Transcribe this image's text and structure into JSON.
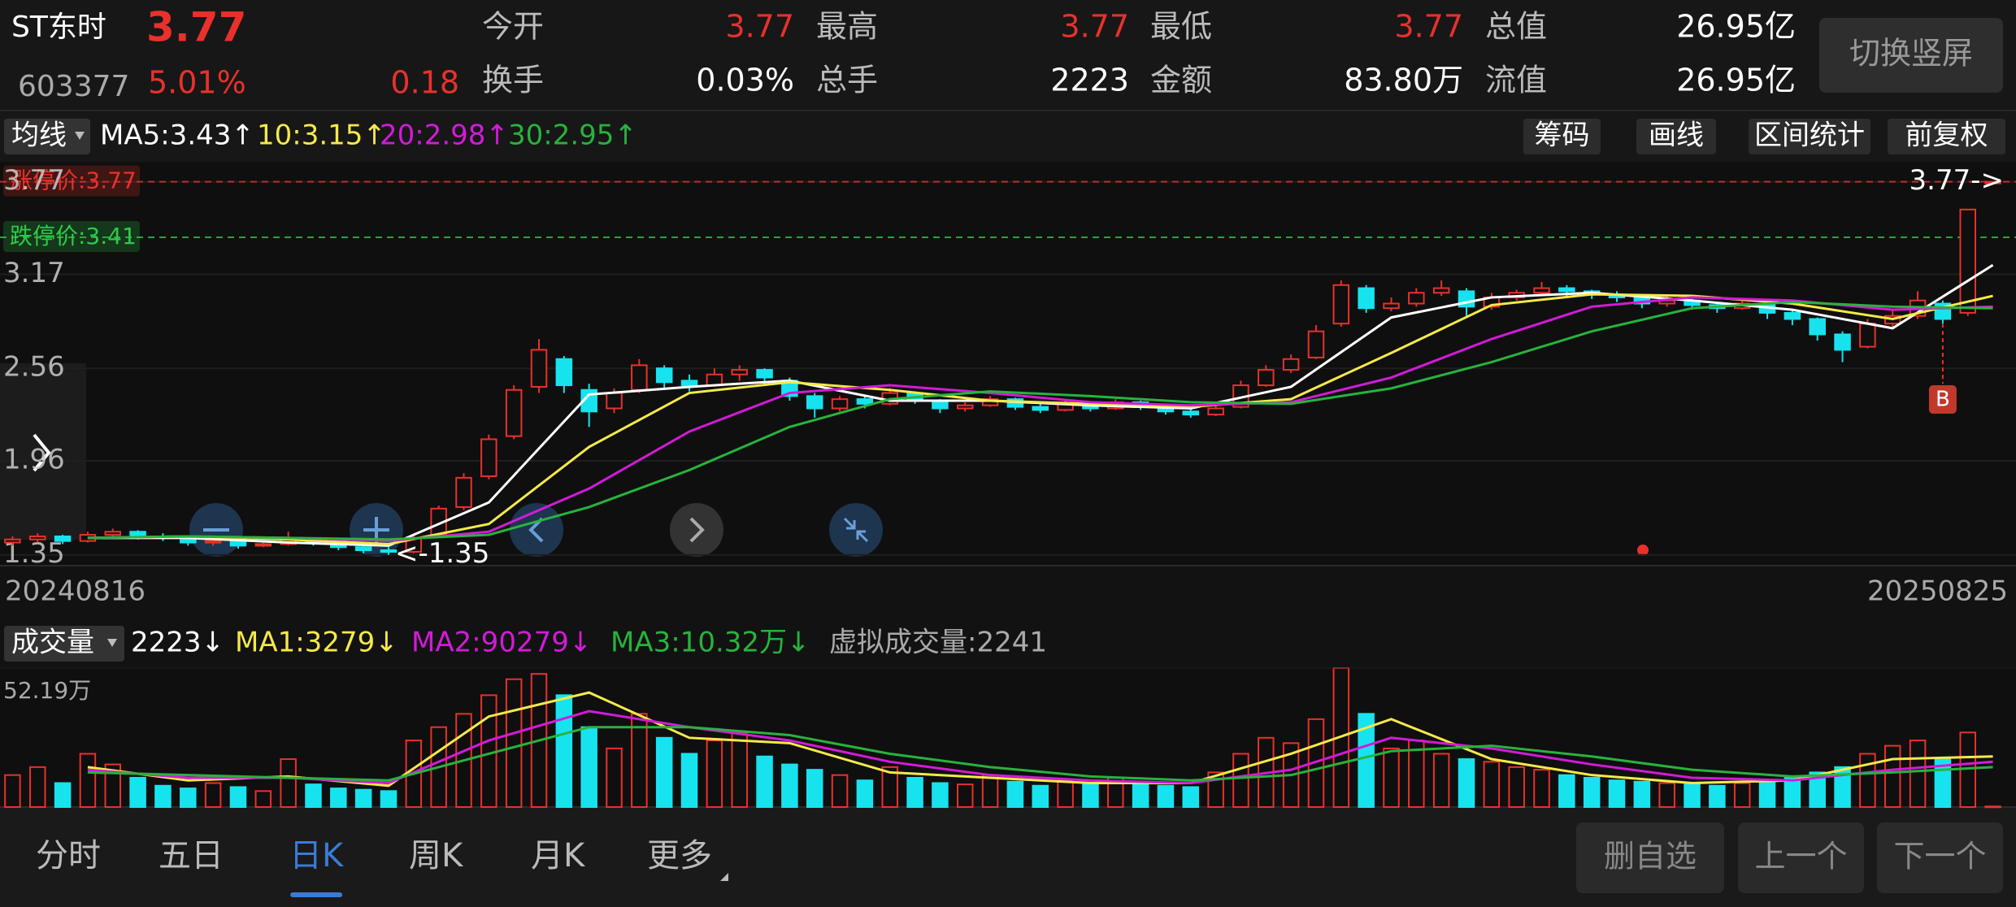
{
  "header": {
    "name": "ST东时",
    "price": "3.77",
    "code": "603377",
    "change_pct": "5.01%",
    "change": "0.18",
    "switch_button": "切换竖屏"
  },
  "quote": [
    [
      {
        "label": "今开",
        "value": "3.77",
        "color": "#e8312b"
      },
      {
        "label": "最高",
        "value": "3.77",
        "color": "#e8312b"
      },
      {
        "label": "最低",
        "value": "3.77",
        "color": "#e8312b"
      },
      {
        "label": "总值",
        "value": "26.95亿",
        "color": "#ffffff"
      }
    ],
    [
      {
        "label": "换手",
        "value": "0.03%",
        "color": "#ffffff"
      },
      {
        "label": "总手",
        "value": "2223",
        "color": "#ffffff"
      },
      {
        "label": "金额",
        "value": "83.80万",
        "color": "#ffffff"
      },
      {
        "label": "流值",
        "value": "26.95亿",
        "color": "#ffffff"
      }
    ]
  ],
  "toolbar": {
    "indicator": "均线",
    "buttons": [
      "筹码",
      "画线",
      "区间统计",
      "前复权"
    ]
  },
  "chart_data": [
    {
      "type": "candlestick",
      "up_color": "#e8312b",
      "down_color": "#17e3ef",
      "ylim": [
        1.28,
        3.9
      ],
      "yticks": [
        3.77,
        3.17,
        2.56,
        1.96,
        1.35
      ],
      "ref_lines": [
        {
          "label": "涨停价:3.77",
          "value": 3.77,
          "color": "#e8312b"
        },
        {
          "label": "跌停价:3.41",
          "value": 3.41,
          "color": "#2fc94a"
        }
      ],
      "high_label": "3.77->",
      "low_label": "<-1.35",
      "date_start": "20240816",
      "date_end": "20250825",
      "marker": "B",
      "candles": [
        [
          1.43,
          1.47,
          1.41,
          1.45
        ],
        [
          1.45,
          1.49,
          1.43,
          1.47
        ],
        [
          1.47,
          1.48,
          1.42,
          1.44
        ],
        [
          1.44,
          1.5,
          1.43,
          1.48
        ],
        [
          1.48,
          1.52,
          1.46,
          1.5
        ],
        [
          1.5,
          1.51,
          1.45,
          1.47
        ],
        [
          1.47,
          1.49,
          1.44,
          1.46
        ],
        [
          1.46,
          1.47,
          1.41,
          1.43
        ],
        [
          1.43,
          1.46,
          1.41,
          1.44
        ],
        [
          1.44,
          1.45,
          1.39,
          1.41
        ],
        [
          1.41,
          1.44,
          1.4,
          1.42
        ],
        [
          1.42,
          1.5,
          1.41,
          1.45
        ],
        [
          1.45,
          1.46,
          1.41,
          1.43
        ],
        [
          1.43,
          1.44,
          1.38,
          1.4
        ],
        [
          1.4,
          1.42,
          1.36,
          1.38
        ],
        [
          1.38,
          1.4,
          1.35,
          1.37
        ],
        [
          1.37,
          1.48,
          1.36,
          1.46
        ],
        [
          1.48,
          1.67,
          1.47,
          1.65
        ],
        [
          1.66,
          1.88,
          1.64,
          1.85
        ],
        [
          1.86,
          2.13,
          1.84,
          2.1
        ],
        [
          2.12,
          2.45,
          2.1,
          2.42
        ],
        [
          2.44,
          2.75,
          2.4,
          2.68
        ],
        [
          2.62,
          2.64,
          2.4,
          2.45
        ],
        [
          2.42,
          2.46,
          2.18,
          2.28
        ],
        [
          2.3,
          2.43,
          2.27,
          2.4
        ],
        [
          2.42,
          2.62,
          2.4,
          2.58
        ],
        [
          2.56,
          2.58,
          2.43,
          2.47
        ],
        [
          2.48,
          2.52,
          2.41,
          2.45
        ],
        [
          2.45,
          2.56,
          2.44,
          2.52
        ],
        [
          2.52,
          2.58,
          2.48,
          2.55
        ],
        [
          2.55,
          2.56,
          2.46,
          2.5
        ],
        [
          2.48,
          2.5,
          2.35,
          2.38
        ],
        [
          2.38,
          2.4,
          2.24,
          2.3
        ],
        [
          2.3,
          2.38,
          2.28,
          2.36
        ],
        [
          2.36,
          2.38,
          2.3,
          2.33
        ],
        [
          2.33,
          2.43,
          2.32,
          2.4
        ],
        [
          2.4,
          2.41,
          2.33,
          2.35
        ],
        [
          2.35,
          2.36,
          2.27,
          2.3
        ],
        [
          2.3,
          2.34,
          2.28,
          2.32
        ],
        [
          2.32,
          2.38,
          2.31,
          2.36
        ],
        [
          2.36,
          2.37,
          2.29,
          2.31
        ],
        [
          2.31,
          2.33,
          2.27,
          2.29
        ],
        [
          2.29,
          2.35,
          2.28,
          2.33
        ],
        [
          2.33,
          2.34,
          2.28,
          2.3
        ],
        [
          2.3,
          2.36,
          2.29,
          2.34
        ],
        [
          2.34,
          2.35,
          2.29,
          2.31
        ],
        [
          2.31,
          2.32,
          2.26,
          2.28
        ],
        [
          2.28,
          2.3,
          2.24,
          2.26
        ],
        [
          2.26,
          2.32,
          2.25,
          2.3
        ],
        [
          2.31,
          2.48,
          2.3,
          2.45
        ],
        [
          2.45,
          2.58,
          2.44,
          2.55
        ],
        [
          2.55,
          2.65,
          2.53,
          2.62
        ],
        [
          2.63,
          2.84,
          2.62,
          2.8
        ],
        [
          2.85,
          3.13,
          2.83,
          3.1
        ],
        [
          3.08,
          3.1,
          2.92,
          2.95
        ],
        [
          2.95,
          3.02,
          2.93,
          2.98
        ],
        [
          2.98,
          3.08,
          2.96,
          3.05
        ],
        [
          3.05,
          3.13,
          3.03,
          3.08
        ],
        [
          3.06,
          3.08,
          2.9,
          2.96
        ],
        [
          2.96,
          3.05,
          2.94,
          3.02
        ],
        [
          3.02,
          3.07,
          3.0,
          3.05
        ],
        [
          3.05,
          3.12,
          3.03,
          3.08
        ],
        [
          3.08,
          3.1,
          3.03,
          3.06
        ],
        [
          3.06,
          3.07,
          3.01,
          3.04
        ],
        [
          3.04,
          3.06,
          2.99,
          3.02
        ],
        [
          3.02,
          3.03,
          2.95,
          2.98
        ],
        [
          2.98,
          3.03,
          2.96,
          3.0
        ],
        [
          3.0,
          3.01,
          2.94,
          2.97
        ],
        [
          2.97,
          2.98,
          2.92,
          2.95
        ],
        [
          2.95,
          3.01,
          2.94,
          2.98
        ],
        [
          2.98,
          2.99,
          2.88,
          2.92
        ],
        [
          2.92,
          2.94,
          2.84,
          2.88
        ],
        [
          2.88,
          2.89,
          2.74,
          2.78
        ],
        [
          2.78,
          2.8,
          2.6,
          2.68
        ],
        [
          2.7,
          2.88,
          2.69,
          2.85
        ],
        [
          2.85,
          2.94,
          2.83,
          2.9
        ],
        [
          2.9,
          3.06,
          2.88,
          3.0
        ],
        [
          2.98,
          3.0,
          2.85,
          2.88
        ],
        [
          2.92,
          3.59,
          2.9,
          3.59
        ],
        [
          3.77,
          3.77,
          3.77,
          3.77
        ]
      ],
      "series": [
        {
          "name": "MA5:3.43↑",
          "color": "#ffffff",
          "values": [
            1.46,
            1.46,
            1.43,
            1.41,
            1.69,
            2.39,
            2.44,
            2.48,
            2.35,
            2.35,
            2.32,
            2.3,
            2.44,
            2.89,
            3.02,
            3.05,
            3.0,
            2.94,
            2.82,
            3.23
          ]
        },
        {
          "name": "10:3.15↑",
          "color": "#f5e94a",
          "values": [
            1.46,
            1.47,
            1.45,
            1.42,
            1.55,
            2.05,
            2.4,
            2.47,
            2.42,
            2.35,
            2.33,
            2.31,
            2.36,
            2.66,
            2.97,
            3.04,
            3.03,
            2.98,
            2.88,
            3.03
          ]
        },
        {
          "name": "20:2.98↑",
          "color": "#d21bd8",
          "values": [
            1.46,
            1.47,
            1.46,
            1.44,
            1.5,
            1.78,
            2.15,
            2.4,
            2.45,
            2.4,
            2.34,
            2.32,
            2.34,
            2.5,
            2.75,
            2.96,
            3.02,
            3.0,
            2.94,
            2.96
          ]
        },
        {
          "name": "30:2.95↑",
          "color": "#27b33d",
          "values": [
            1.46,
            1.47,
            1.46,
            1.45,
            1.48,
            1.66,
            1.9,
            2.18,
            2.36,
            2.41,
            2.38,
            2.34,
            2.33,
            2.43,
            2.6,
            2.8,
            2.95,
            2.99,
            2.96,
            2.95
          ]
        }
      ]
    },
    {
      "type": "bar",
      "title": "成交量",
      "current_label": "2223↓",
      "virtual_label": "虚拟成交量:2241",
      "ylim": [
        0,
        521900
      ],
      "yticks": [
        {
          "value": 521900,
          "label": "52.19万"
        }
      ],
      "values": [
        120000,
        150000,
        90000,
        200000,
        160000,
        110000,
        80000,
        70000,
        90000,
        75000,
        60000,
        180000,
        85000,
        70000,
        65000,
        60000,
        250000,
        300000,
        350000,
        420000,
        480000,
        500000,
        420000,
        300000,
        220000,
        350000,
        260000,
        200000,
        250000,
        280000,
        190000,
        160000,
        140000,
        120000,
        100000,
        150000,
        110000,
        90000,
        85000,
        120000,
        95000,
        80000,
        100000,
        85000,
        110000,
        90000,
        80000,
        75000,
        130000,
        200000,
        260000,
        240000,
        330000,
        521900,
        350000,
        220000,
        250000,
        200000,
        180000,
        170000,
        150000,
        140000,
        120000,
        110000,
        100000,
        95000,
        90000,
        85000,
        80000,
        90000,
        100000,
        110000,
        130000,
        150000,
        200000,
        230000,
        250000,
        180000,
        280000,
        2223
      ],
      "series": [
        {
          "name": "MA1:3279↓",
          "color": "#f5e94a",
          "values": [
            150000,
            100000,
            115000,
            80000,
            340000,
            430000,
            260000,
            240000,
            130000,
            110000,
            90000,
            90000,
            200000,
            330000,
            180000,
            120000,
            90000,
            100000,
            180000,
            190000
          ]
        },
        {
          "name": "MA2:90279↓",
          "color": "#d21bd8",
          "values": [
            140000,
            110000,
            110000,
            90000,
            250000,
            360000,
            300000,
            250000,
            170000,
            120000,
            100000,
            90000,
            140000,
            260000,
            220000,
            160000,
            110000,
            100000,
            140000,
            170000
          ]
        },
        {
          "name": "MA3:10.32万↓",
          "color": "#27b33d",
          "values": [
            130000,
            120000,
            110000,
            100000,
            200000,
            300000,
            300000,
            270000,
            200000,
            150000,
            115000,
            100000,
            120000,
            210000,
            230000,
            190000,
            140000,
            115000,
            130000,
            150000
          ]
        }
      ]
    }
  ],
  "tabs": {
    "items": [
      "分时",
      "五日",
      "日K",
      "周K",
      "月K",
      "更多"
    ],
    "active": 2
  },
  "actions": [
    "删自选",
    "上一个",
    "下一个"
  ]
}
